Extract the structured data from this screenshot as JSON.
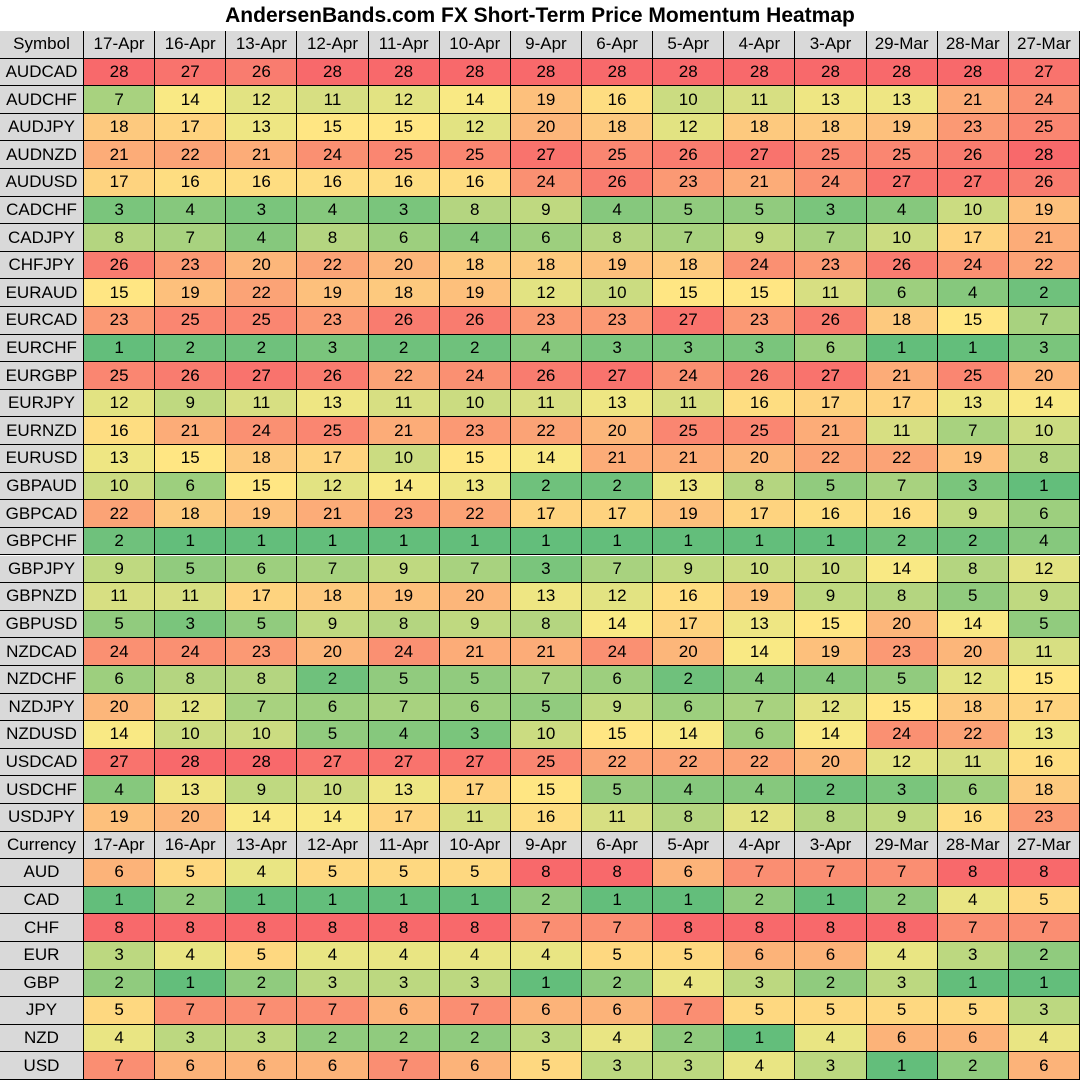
{
  "title": "AndersenBands.com FX Short-Term Price Momentum Heatmap",
  "tables": [
    {
      "header": [
        "Symbol",
        "17-Apr",
        "16-Apr",
        "13-Apr",
        "12-Apr",
        "11-Apr",
        "10-Apr",
        "9-Apr",
        "6-Apr",
        "5-Apr",
        "4-Apr",
        "3-Apr",
        "29-Mar",
        "28-Mar",
        "27-Mar"
      ],
      "rows": [
        {
          "label": "AUDCAD",
          "values": [
            28,
            27,
            26,
            28,
            28,
            28,
            28,
            28,
            28,
            28,
            28,
            28,
            28,
            27
          ]
        },
        {
          "label": "AUDCHF",
          "values": [
            7,
            14,
            12,
            11,
            12,
            14,
            19,
            16,
            10,
            11,
            13,
            13,
            21,
            24
          ]
        },
        {
          "label": "AUDJPY",
          "values": [
            18,
            17,
            13,
            15,
            15,
            12,
            20,
            18,
            12,
            18,
            18,
            19,
            23,
            25
          ]
        },
        {
          "label": "AUDNZD",
          "values": [
            21,
            22,
            21,
            24,
            25,
            25,
            27,
            25,
            26,
            27,
            25,
            25,
            26,
            28
          ]
        },
        {
          "label": "AUDUSD",
          "values": [
            17,
            16,
            16,
            16,
            16,
            16,
            24,
            26,
            23,
            21,
            24,
            27,
            27,
            26
          ]
        },
        {
          "label": "CADCHF",
          "values": [
            3,
            4,
            3,
            4,
            3,
            8,
            9,
            4,
            5,
            5,
            3,
            4,
            10,
            19
          ]
        },
        {
          "label": "CADJPY",
          "values": [
            8,
            7,
            4,
            8,
            6,
            4,
            6,
            8,
            7,
            9,
            7,
            10,
            17,
            21
          ]
        },
        {
          "label": "CHFJPY",
          "values": [
            26,
            23,
            20,
            22,
            20,
            18,
            18,
            19,
            18,
            24,
            23,
            26,
            24,
            22
          ]
        },
        {
          "label": "EURAUD",
          "values": [
            15,
            19,
            22,
            19,
            18,
            19,
            12,
            10,
            15,
            15,
            11,
            6,
            4,
            2
          ]
        },
        {
          "label": "EURCAD",
          "values": [
            23,
            25,
            25,
            23,
            26,
            26,
            23,
            23,
            27,
            23,
            26,
            18,
            15,
            7
          ]
        },
        {
          "label": "EURCHF",
          "values": [
            1,
            2,
            2,
            3,
            2,
            2,
            4,
            3,
            3,
            3,
            6,
            1,
            1,
            3
          ]
        },
        {
          "label": "EURGBP",
          "values": [
            25,
            26,
            27,
            26,
            22,
            24,
            26,
            27,
            24,
            26,
            27,
            21,
            25,
            20
          ]
        },
        {
          "label": "EURJPY",
          "values": [
            12,
            9,
            11,
            13,
            11,
            10,
            11,
            13,
            11,
            16,
            17,
            17,
            13,
            14
          ]
        },
        {
          "label": "EURNZD",
          "values": [
            16,
            21,
            24,
            25,
            21,
            23,
            22,
            20,
            25,
            25,
            21,
            11,
            7,
            10
          ]
        },
        {
          "label": "EURUSD",
          "values": [
            13,
            15,
            18,
            17,
            10,
            15,
            14,
            21,
            21,
            20,
            22,
            22,
            19,
            8
          ]
        },
        {
          "label": "GBPAUD",
          "values": [
            10,
            6,
            15,
            12,
            14,
            13,
            2,
            2,
            13,
            8,
            5,
            7,
            3,
            1
          ]
        },
        {
          "label": "GBPCAD",
          "values": [
            22,
            18,
            19,
            21,
            23,
            22,
            17,
            17,
            19,
            17,
            16,
            16,
            9,
            6
          ]
        },
        {
          "label": "GBPCHF",
          "values": [
            2,
            1,
            1,
            1,
            1,
            1,
            1,
            1,
            1,
            1,
            1,
            2,
            2,
            4
          ]
        },
        {
          "label": "GBPJPY",
          "values": [
            9,
            5,
            6,
            7,
            9,
            7,
            3,
            7,
            9,
            10,
            10,
            14,
            8,
            12
          ]
        },
        {
          "label": "GBPNZD",
          "values": [
            11,
            11,
            17,
            18,
            19,
            20,
            13,
            12,
            16,
            19,
            9,
            8,
            5,
            9
          ]
        },
        {
          "label": "GBPUSD",
          "values": [
            5,
            3,
            5,
            9,
            8,
            9,
            8,
            14,
            17,
            13,
            15,
            20,
            14,
            5
          ]
        },
        {
          "label": "NZDCAD",
          "values": [
            24,
            24,
            23,
            20,
            24,
            21,
            21,
            24,
            20,
            14,
            19,
            23,
            20,
            11
          ]
        },
        {
          "label": "NZDCHF",
          "values": [
            6,
            8,
            8,
            2,
            5,
            5,
            7,
            6,
            2,
            4,
            4,
            5,
            12,
            15
          ]
        },
        {
          "label": "NZDJPY",
          "values": [
            20,
            12,
            7,
            6,
            7,
            6,
            5,
            9,
            6,
            7,
            12,
            15,
            18,
            17
          ]
        },
        {
          "label": "NZDUSD",
          "values": [
            14,
            10,
            10,
            5,
            4,
            3,
            10,
            15,
            14,
            6,
            14,
            24,
            22,
            13
          ]
        },
        {
          "label": "USDCAD",
          "values": [
            27,
            28,
            28,
            27,
            27,
            27,
            25,
            22,
            22,
            22,
            20,
            12,
            11,
            16
          ]
        },
        {
          "label": "USDCHF",
          "values": [
            4,
            13,
            9,
            10,
            13,
            17,
            15,
            5,
            4,
            4,
            2,
            3,
            6,
            18
          ]
        },
        {
          "label": "USDJPY",
          "values": [
            19,
            20,
            14,
            14,
            17,
            11,
            16,
            11,
            8,
            12,
            8,
            9,
            16,
            23
          ]
        }
      ]
    },
    {
      "header": [
        "Currency",
        "17-Apr",
        "16-Apr",
        "13-Apr",
        "12-Apr",
        "11-Apr",
        "10-Apr",
        "9-Apr",
        "6-Apr",
        "5-Apr",
        "4-Apr",
        "3-Apr",
        "29-Mar",
        "28-Mar",
        "27-Mar"
      ],
      "rows": [
        {
          "label": "AUD",
          "values": [
            6,
            5,
            4,
            5,
            5,
            5,
            8,
            8,
            6,
            7,
            7,
            7,
            8,
            8
          ]
        },
        {
          "label": "CAD",
          "values": [
            1,
            2,
            1,
            1,
            1,
            1,
            2,
            1,
            1,
            2,
            1,
            2,
            4,
            5
          ]
        },
        {
          "label": "CHF",
          "values": [
            8,
            8,
            8,
            8,
            8,
            8,
            7,
            7,
            8,
            8,
            8,
            8,
            7,
            7
          ]
        },
        {
          "label": "EUR",
          "values": [
            3,
            4,
            5,
            4,
            4,
            4,
            4,
            5,
            5,
            6,
            6,
            4,
            3,
            2
          ]
        },
        {
          "label": "GBP",
          "values": [
            2,
            1,
            2,
            3,
            3,
            3,
            1,
            2,
            4,
            3,
            2,
            3,
            1,
            1
          ]
        },
        {
          "label": "JPY",
          "values": [
            5,
            7,
            7,
            7,
            6,
            7,
            6,
            6,
            7,
            5,
            5,
            5,
            5,
            3
          ]
        },
        {
          "label": "NZD",
          "values": [
            4,
            3,
            3,
            2,
            2,
            2,
            3,
            4,
            2,
            1,
            4,
            6,
            6,
            4
          ]
        },
        {
          "label": "USD",
          "values": [
            7,
            6,
            6,
            6,
            7,
            6,
            5,
            3,
            3,
            4,
            3,
            1,
            2,
            6
          ]
        }
      ]
    }
  ]
}
